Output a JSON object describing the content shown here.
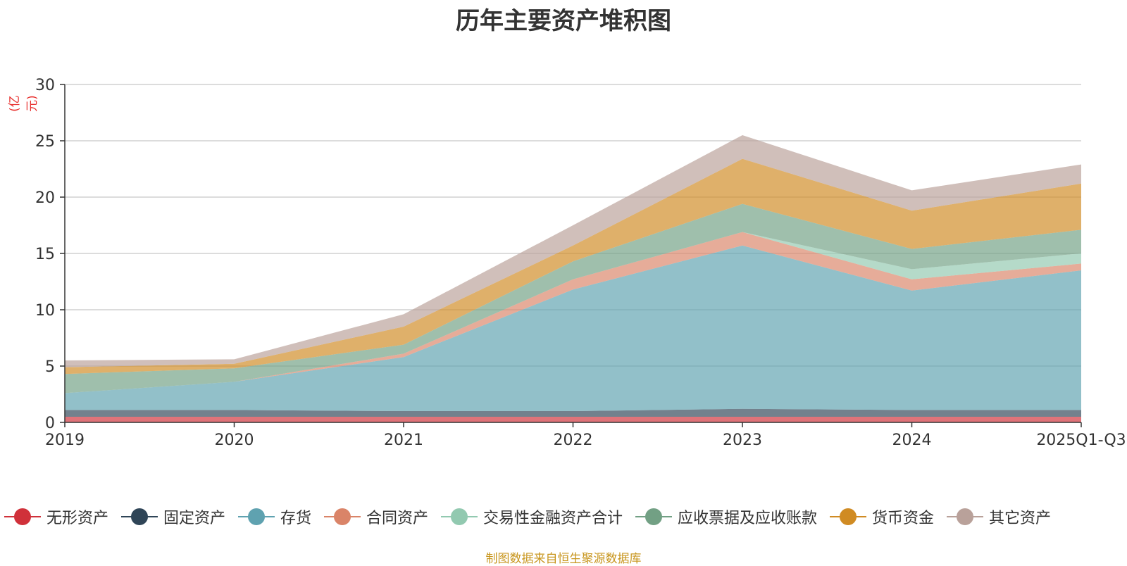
{
  "chart_data": {
    "type": "area",
    "stacked": true,
    "title": "历年主要资产堆积图",
    "unit_label": "(亿元)",
    "categories": [
      "2019",
      "2020",
      "2021",
      "2022",
      "2023",
      "2024",
      "2025Q1-Q3"
    ],
    "y_ticks": [
      "0",
      "5",
      "10",
      "15",
      "20",
      "25",
      "30"
    ],
    "ylim": [
      0,
      30
    ],
    "grid": true,
    "legend_position": "bottom",
    "series": [
      {
        "name": "无形资产",
        "color": "#d0313a",
        "values": [
          0.5,
          0.5,
          0.5,
          0.5,
          0.5,
          0.5,
          0.5
        ]
      },
      {
        "name": "固定资产",
        "color": "#2f4557",
        "values": [
          0.6,
          0.6,
          0.5,
          0.5,
          0.7,
          0.6,
          0.6
        ]
      },
      {
        "name": "存货",
        "color": "#5fa2b0",
        "values": [
          1.5,
          2.5,
          4.8,
          10.8,
          14.5,
          10.6,
          12.4
        ]
      },
      {
        "name": "合同资产",
        "color": "#da8468",
        "values": [
          0.0,
          0.0,
          0.3,
          0.9,
          1.2,
          1.0,
          0.6
        ]
      },
      {
        "name": "交易性金融资产合计",
        "color": "#92c9b0",
        "values": [
          0.0,
          0.0,
          0.0,
          0.0,
          0.0,
          0.9,
          0.9
        ]
      },
      {
        "name": "应收票据及应收账款",
        "color": "#72a084",
        "values": [
          1.7,
          1.2,
          0.8,
          1.6,
          2.5,
          1.8,
          2.1
        ]
      },
      {
        "name": "货币资金",
        "color": "#d08b23",
        "values": [
          0.6,
          0.4,
          1.6,
          1.4,
          4.0,
          3.4,
          4.1
        ]
      },
      {
        "name": "其它资产",
        "color": "#b9a19a",
        "values": [
          0.6,
          0.4,
          1.1,
          1.8,
          2.1,
          1.8,
          1.7
        ]
      }
    ]
  },
  "source_note": "制图数据来自恒生聚源数据库"
}
